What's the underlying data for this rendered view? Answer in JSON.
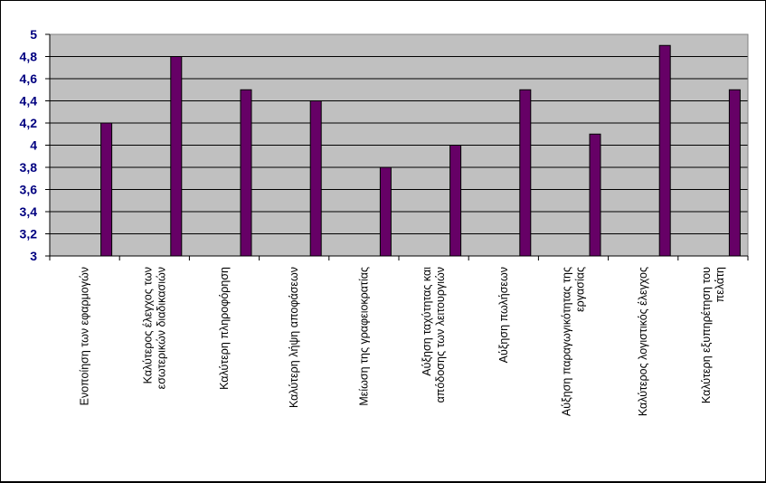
{
  "chart_data": {
    "type": "bar",
    "title": "",
    "xlabel": "",
    "ylabel": "",
    "ylim": [
      3,
      5
    ],
    "y_ticks": [
      "3",
      "3,2",
      "3,4",
      "3,6",
      "3,8",
      "4",
      "4,2",
      "4,4",
      "4,6",
      "4,8",
      "5"
    ],
    "y_tick_values": [
      3,
      3.2,
      3.4,
      3.6,
      3.8,
      4,
      4.2,
      4.4,
      4.6,
      4.8,
      5
    ],
    "categories": [
      [
        "Ενοποίηση των εφαρμογών"
      ],
      [
        "Καλύτερος έλεγχος των",
        "εσωτερικών διαδικασιών"
      ],
      [
        "Καλύτερη πληροφόρηση"
      ],
      [
        "Καλύτερη λήψη αποφάσεων"
      ],
      [
        "Μείωση της γραφειοκρατίας"
      ],
      [
        "Αύξηση ταχύτητας και",
        "απόδοσης των λειτουργιών"
      ],
      [
        "Αύξηση πωλήσεων"
      ],
      [
        "Αύξηση παραγωγικότητας της",
        "εργασίας"
      ],
      [
        "Καλύτερος λογιστικός έλεγχος"
      ],
      [
        "Καλύτερη εξυπηρέτηση του",
        "πελάτη"
      ]
    ],
    "values": [
      4.2,
      4.8,
      4.5,
      4.4,
      3.8,
      4.0,
      4.5,
      4.1,
      4.9,
      4.5
    ],
    "grid": true,
    "legend": "none",
    "colors": {
      "bar": "#660066",
      "plot_background": "#C0C0C0",
      "gridline": "#000000",
      "tick_label": "#000080",
      "outer_background": "#000000"
    }
  }
}
